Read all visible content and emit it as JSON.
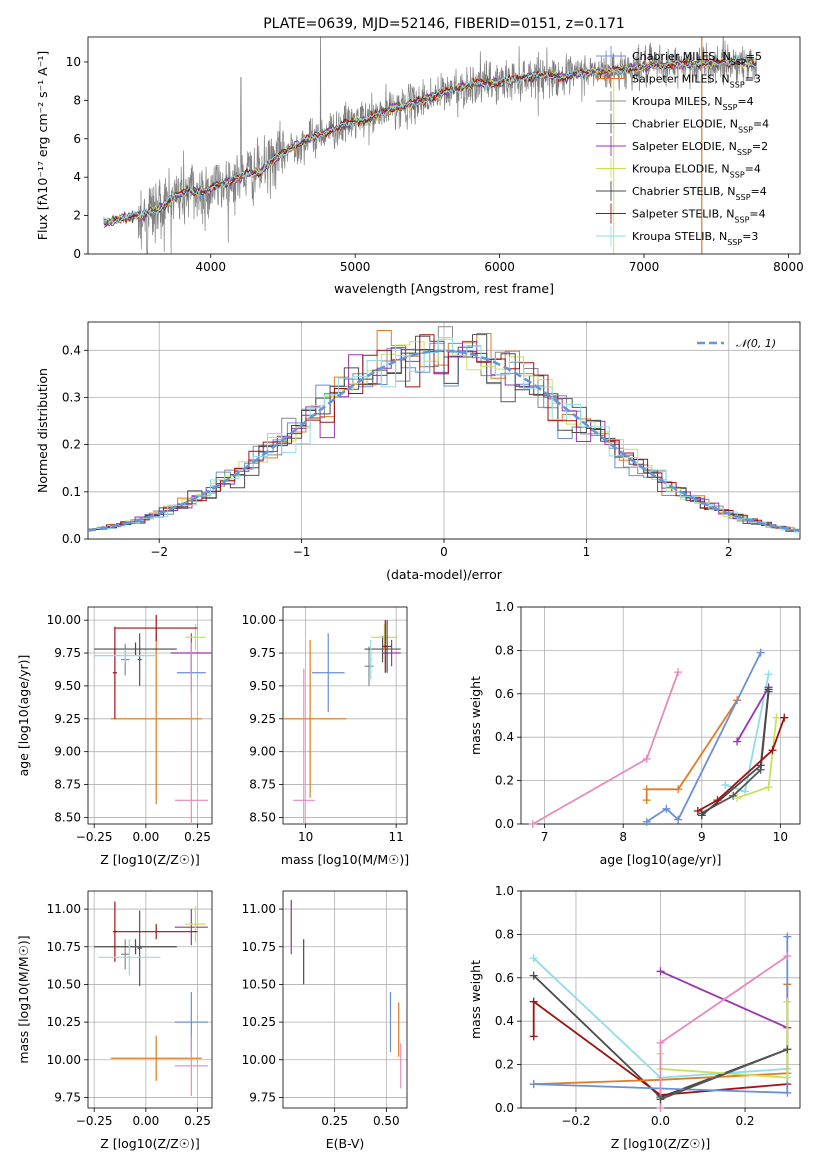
{
  "palette": [
    "#6a8fd8",
    "#e07b22",
    "#8a8a8a",
    "#555555",
    "#9a35b0",
    "#c9e05a",
    "#4a4a4a",
    "#a01212",
    "#8fdde8"
  ],
  "extra_colors": {
    "grey": "#808080",
    "pink": "#e68ab8",
    "salmon": "#f08c8c",
    "dash": "#6496dc",
    "green": "#55aa55"
  },
  "chart_data": [
    {
      "id": "spectrum",
      "type": "line",
      "title": "PLATE=0639, MJD=52146, FIBERID=0151, z=0.171",
      "xlabel": "wavelength [Angstrom, rest frame]",
      "ylabel": "Flux [fλ10⁻¹⁷ erg cm⁻² s⁻¹ A⁻¹]",
      "xlim": [
        3150,
        8080
      ],
      "ylim": [
        0,
        11.3
      ],
      "xticks": [
        4000,
        5000,
        6000,
        7000,
        8000
      ],
      "yticks": [
        0,
        2,
        4,
        6,
        8,
        10
      ],
      "continuum": [
        [
          3260,
          1.6
        ],
        [
          3400,
          1.9
        ],
        [
          3550,
          2.1
        ],
        [
          3650,
          2.4
        ],
        [
          3750,
          3.0
        ],
        [
          3850,
          3.3
        ],
        [
          3950,
          3.2
        ],
        [
          4050,
          3.6
        ],
        [
          4150,
          3.8
        ],
        [
          4250,
          4.2
        ],
        [
          4350,
          4.3
        ],
        [
          4450,
          5.0
        ],
        [
          4550,
          5.5
        ],
        [
          4650,
          5.9
        ],
        [
          4750,
          6.2
        ],
        [
          4850,
          6.5
        ],
        [
          4950,
          6.8
        ],
        [
          5050,
          7.0
        ],
        [
          5150,
          7.2
        ],
        [
          5250,
          7.6
        ],
        [
          5350,
          7.7
        ],
        [
          5450,
          8.0
        ],
        [
          5550,
          8.2
        ],
        [
          5650,
          8.5
        ],
        [
          5750,
          8.7
        ],
        [
          5850,
          8.9
        ],
        [
          5950,
          8.9
        ],
        [
          6050,
          9.0
        ],
        [
          6150,
          9.2
        ],
        [
          6250,
          9.3
        ],
        [
          6350,
          9.3
        ],
        [
          6450,
          9.2
        ],
        [
          6550,
          9.4
        ],
        [
          6650,
          9.5
        ],
        [
          6750,
          9.5
        ],
        [
          6850,
          9.6
        ],
        [
          6950,
          9.7
        ],
        [
          7050,
          9.8
        ],
        [
          7150,
          9.8
        ],
        [
          7250,
          9.9
        ],
        [
          7350,
          9.9
        ],
        [
          7450,
          9.9
        ],
        [
          7550,
          10.0
        ],
        [
          7650,
          10.0
        ],
        [
          7750,
          9.9
        ]
      ],
      "legend_position": "upper right",
      "legend": [
        "Chabrier MILES, N$_{SSP}$=5",
        "Salpeter MILES, N$_{SSP}$=3",
        "Kroupa MILES, N$_{SSP}$=4",
        "Chabrier ELODIE, N$_{SSP}$=4",
        "Salpeter ELODIE, N$_{SSP}$=2",
        "Kroupa ELODIE, N$_{SSP}$=4",
        "Chabrier STELIB, N$_{SSP}$=4",
        "Salpeter STELIB, N$_{SSP}$=4",
        "Kroupa STELIB, N$_{SSP}$=3"
      ],
      "legend_display": [
        "Chabrier MILES, N",
        "Salpeter MILES, N",
        "Kroupa MILES, N",
        "Chabrier ELODIE, N",
        "Salpeter ELODIE, N",
        "Kroupa ELODIE, N",
        "Chabrier STELIB, N",
        "Salpeter STELIB, N",
        "Kroupa STELIB, N"
      ],
      "legend_sub": "SSP",
      "legend_n": [
        "=5",
        "=3",
        "=4",
        "=4",
        "=2",
        "=4",
        "=4",
        "=4",
        "=3"
      ],
      "grid": false
    },
    {
      "id": "residuals",
      "type": "histogram",
      "xlabel": "(data-model)/error",
      "ylabel": "Normed distribution",
      "xlim": [
        -2.5,
        2.5
      ],
      "ylim": [
        0,
        0.46
      ],
      "xticks": [
        -2,
        -1,
        0,
        1,
        2
      ],
      "yticks": [
        0.0,
        0.1,
        0.2,
        0.3,
        0.4
      ],
      "bin_width": 0.1,
      "reference_label": "𝒩(0, 1)",
      "grid": true
    },
    {
      "id": "age-vs-z",
      "type": "errorbar",
      "xlabel": "Z [log10(Z/Z☉)]",
      "ylabel": "age  [log10(age/yr)]",
      "xlim": [
        -0.28,
        0.32
      ],
      "ylim": [
        8.45,
        10.1
      ],
      "xticks": [
        -0.25,
        0.0,
        0.25
      ],
      "yticks": [
        8.5,
        8.75,
        9.0,
        9.25,
        9.5,
        9.75,
        10.0
      ],
      "points": [
        {
          "c": 0,
          "x": 0.22,
          "y": 9.6,
          "xerr": 0.07,
          "yerr": 0.15
        },
        {
          "c": 1,
          "x": 0.05,
          "y": 9.25,
          "xerr": 0.22,
          "yerr": 0.65
        },
        {
          "c": 2,
          "x": -0.1,
          "y": 9.7,
          "xerr": 0.02,
          "yerr": 0.12
        },
        {
          "c": 3,
          "x": -0.03,
          "y": 9.7,
          "xerr": 0.01,
          "yerr": 0.2
        },
        {
          "c": 4,
          "x": 0.22,
          "y": 9.75,
          "xerr": 0.1,
          "yerr": 0.15
        },
        {
          "c": 5,
          "x": 0.24,
          "y": 9.87,
          "xerr": 0.05,
          "yerr": 0.1
        },
        {
          "c": 6,
          "x": -0.05,
          "y": 9.78,
          "xerr": 0.2,
          "yerr": 0.05
        },
        {
          "c": 7,
          "x": 0.05,
          "y": 9.94,
          "xerr": 0.2,
          "yerr": 0.1
        },
        {
          "c": 7,
          "x": -0.15,
          "y": 9.6,
          "xerr": 0.01,
          "yerr": 0.35
        },
        {
          "c": 8,
          "x": -0.1,
          "y": 9.73,
          "xerr": 0.15,
          "yerr": 0.05
        },
        {
          "c": 9,
          "x": 0.22,
          "y": 8.63,
          "xerr": 0.08,
          "yerr": 1.2
        }
      ],
      "grid": true
    },
    {
      "id": "age-vs-mass",
      "type": "errorbar",
      "xlabel": "mass [log10(M/M☉)]",
      "ylabel": "",
      "xlim": [
        9.75,
        11.12
      ],
      "ylim": [
        8.45,
        10.1
      ],
      "xticks": [
        10,
        11
      ],
      "yticks": [
        8.5,
        8.75,
        9.0,
        9.25,
        9.5,
        9.75,
        10.0
      ],
      "points": [
        {
          "c": 0,
          "x": 10.25,
          "y": 9.6,
          "xerr": 0.18,
          "yerr": 0.3
        },
        {
          "c": 1,
          "x": 10.05,
          "y": 9.25,
          "xerr": 0.4,
          "yerr": 0.6
        },
        {
          "c": 2,
          "x": 10.7,
          "y": 9.65,
          "xerr": 0.05,
          "yerr": 0.15
        },
        {
          "c": 3,
          "x": 10.85,
          "y": 9.78,
          "xerr": 0.2,
          "yerr": 0.1
        },
        {
          "c": 4,
          "x": 10.95,
          "y": 9.75,
          "xerr": 0.1,
          "yerr": 0.1
        },
        {
          "c": 5,
          "x": 10.87,
          "y": 9.87,
          "xerr": 0.15,
          "yerr": 0.1
        },
        {
          "c": 6,
          "x": 10.9,
          "y": 9.8,
          "xerr": 0.05,
          "yerr": 0.2
        },
        {
          "c": 7,
          "x": 10.88,
          "y": 9.8,
          "xerr": 0.02,
          "yerr": 0.2
        },
        {
          "c": 8,
          "x": 10.72,
          "y": 9.7,
          "xerr": 0.02,
          "yerr": 0.15
        },
        {
          "c": 9,
          "x": 9.98,
          "y": 8.63,
          "xerr": 0.12,
          "yerr": 1.0
        }
      ],
      "grid": true
    },
    {
      "id": "weight-vs-age",
      "type": "line",
      "xlabel": "age  [log10(age/yr)]",
      "ylabel": "mass weight",
      "xlim": [
        6.7,
        10.25
      ],
      "ylim": [
        0,
        1.0
      ],
      "xticks": [
        7,
        8,
        9,
        10
      ],
      "yticks": [
        0.0,
        0.2,
        0.4,
        0.6,
        0.8,
        1.0
      ],
      "series": [
        {
          "c": 9,
          "x": [
            6.85,
            8.3,
            8.7
          ],
          "y": [
            0.0,
            0.3,
            0.7
          ]
        },
        {
          "c": 1,
          "x": [
            8.3,
            8.3,
            8.7,
            9.45
          ],
          "y": [
            0.11,
            0.16,
            0.16,
            0.57
          ]
        },
        {
          "c": 0,
          "x": [
            8.3,
            8.55,
            8.7,
            9.75
          ],
          "y": [
            0.01,
            0.07,
            0.02,
            0.79
          ]
        },
        {
          "c": 8,
          "x": [
            9.3,
            9.55,
            9.85
          ],
          "y": [
            0.18,
            0.15,
            0.69
          ]
        },
        {
          "c": 3,
          "x": [
            9.0,
            9.4,
            9.75,
            9.85
          ],
          "y": [
            0.05,
            0.13,
            0.25,
            0.61
          ]
        },
        {
          "c": 4,
          "x": [
            9.45,
            9.85
          ],
          "y": [
            0.38,
            0.63
          ]
        },
        {
          "c": 5,
          "x": [
            9.45,
            9.85,
            9.95
          ],
          "y": [
            0.12,
            0.17,
            0.49
          ]
        },
        {
          "c": 6,
          "x": [
            9.0,
            9.75,
            9.85
          ],
          "y": [
            0.04,
            0.27,
            0.62
          ]
        },
        {
          "c": 7,
          "x": [
            8.95,
            9.2,
            9.9,
            10.05
          ],
          "y": [
            0.06,
            0.11,
            0.34,
            0.49
          ]
        }
      ],
      "grid": true
    },
    {
      "id": "mass-vs-z",
      "type": "errorbar",
      "xlabel": "Z [log10(Z/Z☉)]",
      "ylabel": "mass [log10(M/M☉)]",
      "xlim": [
        -0.28,
        0.32
      ],
      "ylim": [
        9.68,
        11.12
      ],
      "xticks": [
        -0.25,
        0.0,
        0.25
      ],
      "yticks": [
        9.75,
        10.0,
        10.25,
        10.5,
        10.75,
        11.0
      ],
      "points": [
        {
          "c": 0,
          "x": 0.22,
          "y": 10.25,
          "xerr": 0.08,
          "yerr": 0.2
        },
        {
          "c": 1,
          "x": 0.05,
          "y": 10.01,
          "xerr": 0.22,
          "yerr": 0.15
        },
        {
          "c": 2,
          "x": -0.1,
          "y": 10.7,
          "xerr": 0.02,
          "yerr": 0.1
        },
        {
          "c": 3,
          "x": -0.03,
          "y": 10.74,
          "xerr": 0.01,
          "yerr": 0.25
        },
        {
          "c": 4,
          "x": 0.22,
          "y": 10.88,
          "xerr": 0.08,
          "yerr": 0.12
        },
        {
          "c": 5,
          "x": 0.24,
          "y": 10.9,
          "xerr": 0.05,
          "yerr": 0.12
        },
        {
          "c": 6,
          "x": -0.05,
          "y": 10.75,
          "xerr": 0.2,
          "yerr": 0.05
        },
        {
          "c": 7,
          "x": 0.05,
          "y": 10.85,
          "xerr": 0.2,
          "yerr": 0.05
        },
        {
          "c": 7,
          "x": -0.15,
          "y": 10.85,
          "xerr": 0.01,
          "yerr": 0.2
        },
        {
          "c": 8,
          "x": -0.08,
          "y": 10.68,
          "xerr": 0.15,
          "yerr": 0.12
        },
        {
          "c": 9,
          "x": 0.22,
          "y": 9.96,
          "xerr": 0.08,
          "yerr": 0.2
        }
      ],
      "grid": true
    },
    {
      "id": "mass-vs-ebv",
      "type": "errorbar",
      "xlabel": "E(B-V)",
      "ylabel": "",
      "xlim": [
        0.0,
        0.6
      ],
      "ylim": [
        9.68,
        11.12
      ],
      "xticks": [
        0.25,
        0.5
      ],
      "yticks": [
        9.75,
        10.0,
        10.25,
        10.5,
        10.75,
        11.0
      ],
      "points": [
        {
          "c": 5,
          "x": 0.04,
          "y": 10.9,
          "xerr": 0.0,
          "yerr": 0.15
        },
        {
          "c": 4,
          "x": 0.04,
          "y": 10.88,
          "xerr": 0.0,
          "yerr": 0.18
        },
        {
          "c": 6,
          "x": 0.1,
          "y": 10.65,
          "xerr": 0.0,
          "yerr": 0.15
        },
        {
          "c": 0,
          "x": 0.52,
          "y": 10.25,
          "xerr": 0.0,
          "yerr": 0.2
        },
        {
          "c": 1,
          "x": 0.56,
          "y": 10.2,
          "xerr": 0.0,
          "yerr": 0.18
        },
        {
          "c": 9,
          "x": 0.57,
          "y": 9.96,
          "xerr": 0.0,
          "yerr": 0.15
        }
      ],
      "grid": true
    },
    {
      "id": "weight-vs-z",
      "type": "line",
      "xlabel": "Z [log10(Z/Z☉)]",
      "ylabel": "mass weight",
      "xlim": [
        -0.33,
        0.33
      ],
      "ylim": [
        0,
        1.0
      ],
      "xticks": [
        -0.2,
        0.0,
        0.2
      ],
      "yticks": [
        0.0,
        0.2,
        0.4,
        0.6,
        0.8,
        1.0
      ],
      "series": [
        {
          "c": 8,
          "x": [
            -0.3,
            0.0,
            0.3
          ],
          "y": [
            0.69,
            0.14,
            0.18
          ]
        },
        {
          "c": 6,
          "x": [
            -0.3,
            0.0,
            0.3
          ],
          "y": [
            0.61,
            0.05,
            0.27
          ]
        },
        {
          "c": 7,
          "x": [
            -0.3,
            -0.3,
            0.0,
            0.3
          ],
          "y": [
            0.33,
            0.49,
            0.06,
            0.11
          ]
        },
        {
          "c": 1,
          "x": [
            -0.3,
            0.0,
            0.3,
            0.3
          ],
          "y": [
            0.11,
            0.13,
            0.16,
            0.57
          ]
        },
        {
          "c": 0,
          "x": [
            -0.3,
            0.0,
            0.3,
            0.3
          ],
          "y": [
            0.11,
            0.09,
            0.07,
            0.79
          ]
        },
        {
          "c": 4,
          "x": [
            0.0,
            0.3
          ],
          "y": [
            0.63,
            0.37
          ]
        },
        {
          "c": 5,
          "x": [
            0.0,
            0.0,
            0.3,
            0.3
          ],
          "y": [
            0.25,
            0.18,
            0.14,
            0.49
          ]
        },
        {
          "c": 9,
          "x": [
            0.0,
            0.0,
            0.3
          ],
          "y": [
            0.0,
            0.3,
            0.7
          ]
        },
        {
          "c": 3,
          "x": [
            0.0,
            0.3
          ],
          "y": [
            0.04,
            0.27
          ]
        }
      ],
      "grid": true
    }
  ]
}
